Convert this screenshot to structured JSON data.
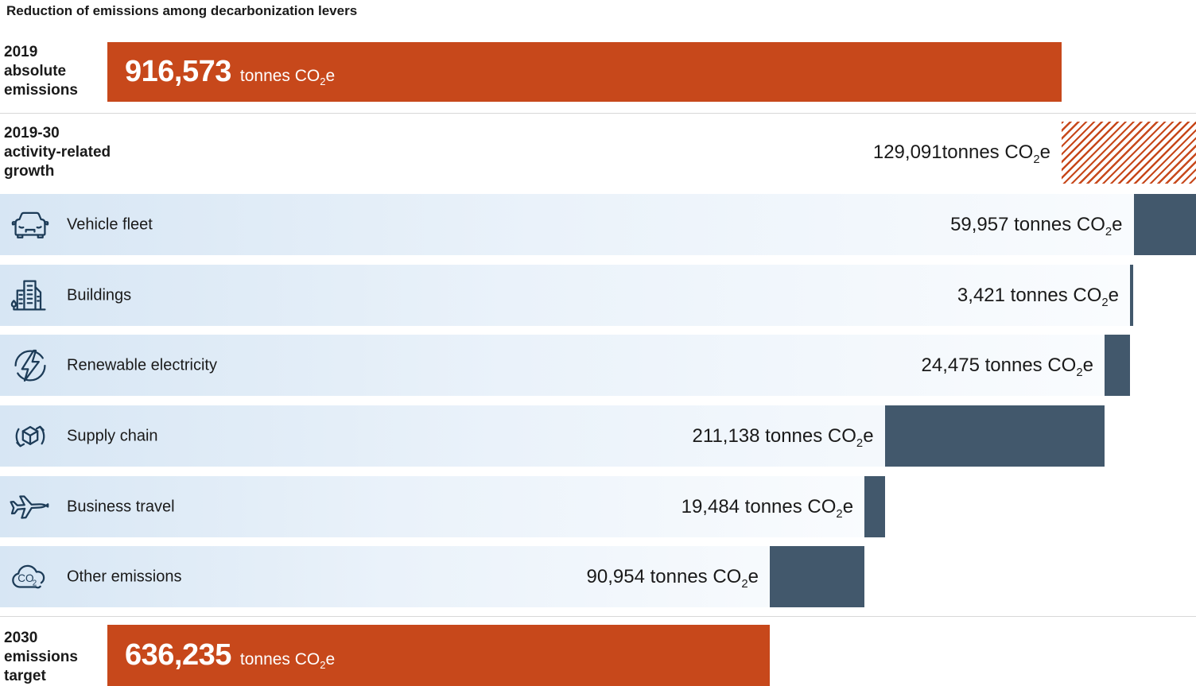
{
  "title": "Reduction of emissions among decarbonization levers",
  "unit": "tonnes CO2e",
  "colors": {
    "bar_orange": "#c7481b",
    "bar_slate": "#42586c",
    "icon_navy": "#1d3c58",
    "band_gradient_left": "#d7e6f4",
    "band_gradient_right": "#fafcfe",
    "separator": "#d8d8d8",
    "text": "#1a1a1a"
  },
  "chart_data": {
    "type": "bar",
    "subtype": "horizontal-waterfall",
    "title": "Reduction of emissions among decarbonization levers",
    "unit": "tonnes CO2e",
    "baseline": {
      "label": "2019 absolute emissions",
      "label_lines": [
        "2019",
        "absolute",
        "emissions"
      ],
      "value": 916573,
      "value_display": "916,573"
    },
    "growth": {
      "label": "2019-30 activity-related growth",
      "label_lines": [
        "2019-30",
        "activity-related",
        "growth"
      ],
      "value": 129091,
      "value_display": "129,091",
      "bar_style": "red-diagonal-hatch"
    },
    "levers": [
      {
        "label": "Vehicle fleet",
        "icon": "car-icon",
        "value": 59957,
        "value_display": "59,957"
      },
      {
        "label": "Buildings",
        "icon": "buildings-icon",
        "value": 3421,
        "value_display": "3,421"
      },
      {
        "label": "Renewable electricity",
        "icon": "lightning-icon",
        "value": 24475,
        "value_display": "24,475"
      },
      {
        "label": "Supply chain",
        "icon": "supply-chain-icon",
        "value": 211138,
        "value_display": "211,138"
      },
      {
        "label": "Business travel",
        "icon": "airplane-icon",
        "value": 19484,
        "value_display": "19,484"
      },
      {
        "label": "Other emissions",
        "icon": "co2-cloud-icon",
        "value": 90954,
        "value_display": "90,954"
      }
    ],
    "target": {
      "label": "2030 emissions target",
      "label_lines": [
        "2030",
        "emissions",
        "target"
      ],
      "value": 636235,
      "value_display": "636,235"
    }
  }
}
